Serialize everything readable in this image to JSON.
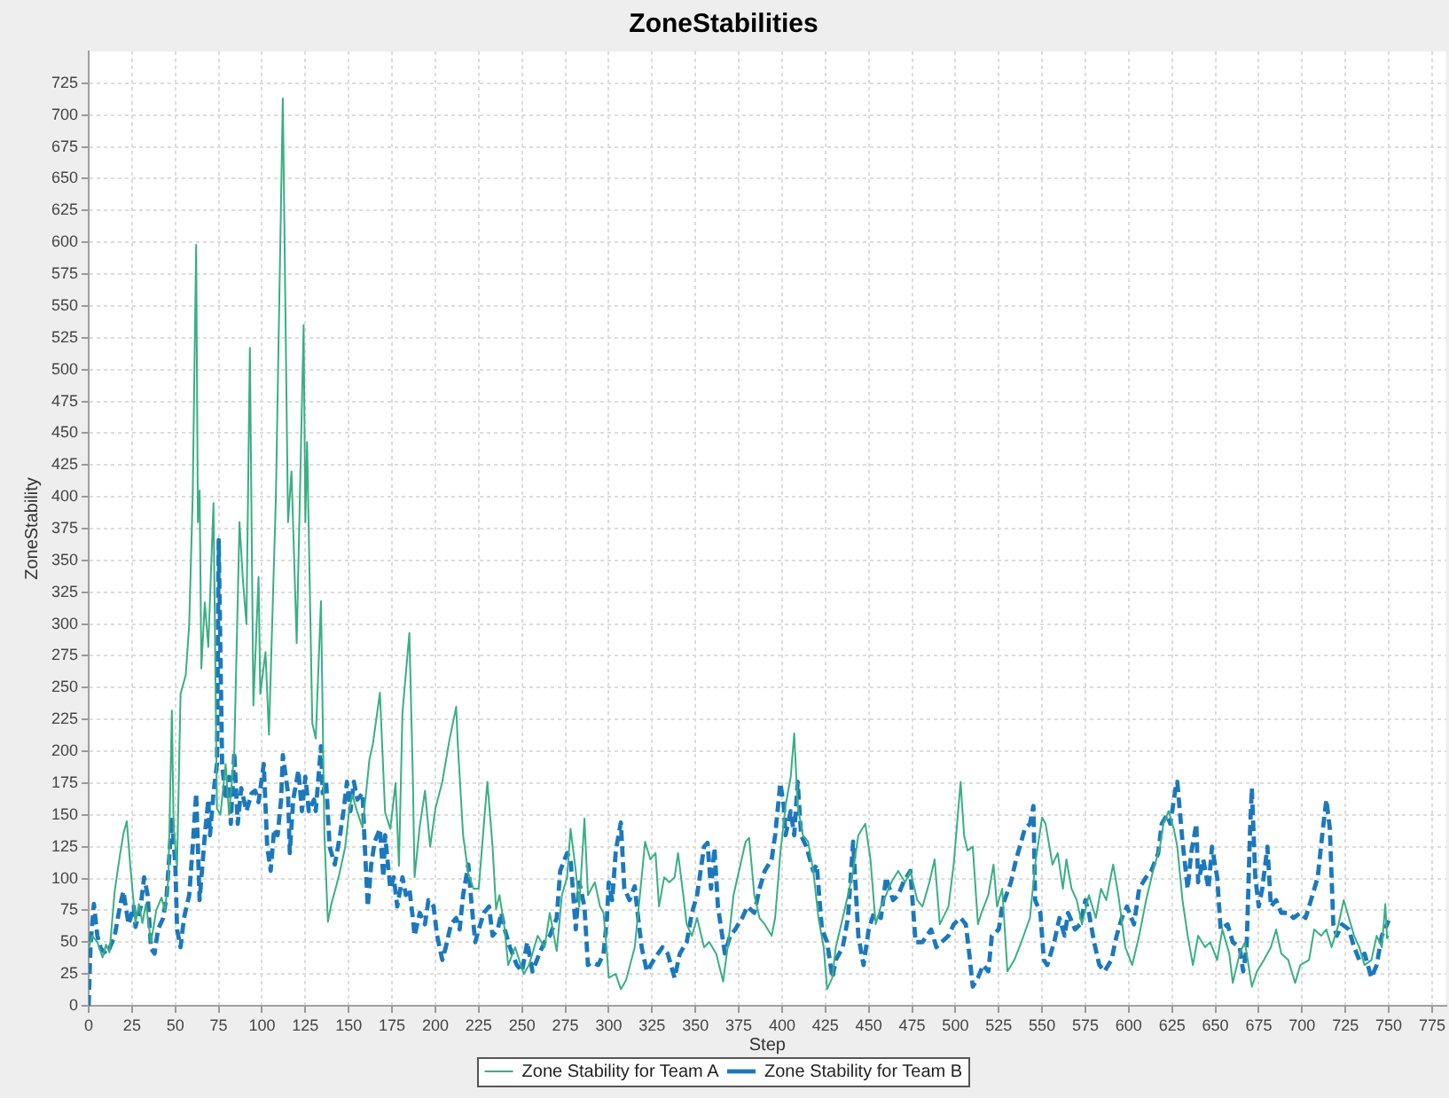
{
  "chart_data": {
    "type": "line",
    "title": "ZoneStabilities",
    "xlabel": "Step",
    "ylabel": "ZoneStability",
    "xlim": [
      0,
      783
    ],
    "ylim": [
      0,
      750
    ],
    "xticks": [
      0,
      25,
      50,
      75,
      100,
      125,
      150,
      175,
      200,
      225,
      250,
      275,
      300,
      325,
      350,
      375,
      400,
      425,
      450,
      475,
      500,
      525,
      550,
      575,
      600,
      625,
      650,
      675,
      700,
      725,
      750,
      775
    ],
    "yticks": [
      0,
      25,
      50,
      75,
      100,
      125,
      150,
      175,
      200,
      225,
      250,
      275,
      300,
      325,
      350,
      375,
      400,
      425,
      450,
      475,
      500,
      525,
      550,
      575,
      600,
      625,
      650,
      675,
      700,
      725
    ],
    "grid": true,
    "legend": "bottom",
    "marker": "none",
    "series": [
      {
        "name": "Zone Stability for Team A",
        "color": "#3aae84",
        "line_style": "solid",
        "x": [
          0,
          2,
          5,
          8,
          10,
          12,
          15,
          18,
          20,
          22,
          24,
          27,
          29,
          31,
          33,
          36,
          39,
          42,
          44,
          46,
          48,
          49,
          51,
          53,
          56,
          58,
          60,
          62,
          63,
          64,
          65,
          67,
          69,
          72,
          74,
          76,
          79,
          81,
          84,
          87,
          89,
          91,
          93,
          95,
          98,
          99,
          102,
          104,
          108,
          112,
          115,
          117,
          120,
          124,
          125,
          126,
          129,
          131,
          134,
          136,
          138,
          140,
          143,
          145,
          148,
          150,
          152,
          155,
          158,
          162,
          164,
          168,
          171,
          174,
          177,
          179,
          181,
          185,
          187,
          188,
          191,
          194,
          197,
          200,
          204,
          208,
          212,
          213,
          216,
          219,
          222,
          225,
          228,
          230,
          233,
          235,
          237,
          240,
          242,
          246,
          251,
          254,
          259,
          263,
          266,
          270,
          273,
          276,
          278,
          281,
          283,
          286,
          288,
          292,
          295,
          297,
          299,
          300,
          304,
          307,
          310,
          315,
          318,
          321,
          324,
          327,
          329,
          332,
          335,
          338,
          340,
          343,
          345,
          348,
          351,
          355,
          358,
          362,
          366,
          369,
          372,
          376,
          379,
          381,
          384,
          387,
          390,
          394,
          396,
          399,
          402,
          405,
          407,
          409,
          412,
          415,
          418,
          421,
          424,
          426,
          429,
          431,
          435,
          438,
          441,
          444,
          448,
          451,
          454,
          457,
          460,
          463,
          467,
          471,
          474,
          478,
          481,
          485,
          488,
          491,
          496,
          499,
          503,
          505,
          507,
          510,
          513,
          515,
          519,
          522,
          524,
          527,
          530,
          534,
          538,
          543,
          546,
          550,
          552,
          556,
          559,
          562,
          564,
          567,
          570,
          573,
          577,
          581,
          584,
          587,
          591,
          594,
          598,
          602,
          606,
          610,
          614,
          618,
          620,
          623,
          626,
          628,
          631,
          634,
          637,
          640,
          644,
          647,
          651,
          654,
          658,
          660,
          664,
          667,
          671,
          674,
          678,
          682,
          685,
          688,
          692,
          696,
          699,
          704,
          707,
          711,
          714,
          717,
          721,
          724,
          727,
          730,
          733,
          736,
          740,
          743,
          746,
          748,
          749,
          750
        ],
        "values": [
          45,
          55,
          50,
          38,
          48,
          42,
          90,
          118,
          135,
          145,
          110,
          65,
          80,
          65,
          80,
          50,
          75,
          85,
          75,
          100,
          232,
          140,
          110,
          245,
          260,
          300,
          400,
          598,
          380,
          405,
          265,
          317,
          282,
          395,
          155,
          150,
          190,
          150,
          200,
          380,
          334,
          300,
          517,
          236,
          337,
          245,
          278,
          213,
          400,
          713,
          380,
          420,
          285,
          535,
          380,
          443,
          222,
          210,
          318,
          134,
          66,
          80,
          95,
          106,
          125,
          150,
          166,
          152,
          140,
          194,
          206,
          246,
          152,
          139,
          175,
          110,
          230,
          293,
          180,
          101,
          141,
          169,
          125,
          155,
          176,
          208,
          235,
          204,
          134,
          104,
          92,
          92,
          143,
          176,
          125,
          76,
          87,
          60,
          32,
          46,
          25,
          32,
          55,
          46,
          73,
          43,
          87,
          101,
          139,
          106,
          78,
          147,
          87,
          97,
          78,
          73,
          41,
          22,
          25,
          13,
          20,
          46,
          87,
          129,
          115,
          120,
          78,
          101,
          97,
          101,
          120,
          87,
          64,
          55,
          69,
          46,
          50,
          41,
          19,
          50,
          87,
          111,
          129,
          132,
          87,
          69,
          64,
          55,
          69,
          120,
          157,
          180,
          214,
          157,
          134,
          129,
          106,
          69,
          46,
          13,
          22,
          46,
          69,
          87,
          106,
          134,
          143,
          115,
          64,
          78,
          87,
          97,
          106,
          97,
          106,
          83,
          78,
          97,
          115,
          64,
          78,
          111,
          176,
          134,
          122,
          125,
          64,
          73,
          87,
          111,
          78,
          92,
          27,
          36,
          50,
          69,
          111,
          148,
          143,
          111,
          120,
          92,
          115,
          92,
          83,
          64,
          87,
          69,
          92,
          83,
          111,
          87,
          46,
          32,
          55,
          83,
          106,
          125,
          143,
          153,
          139,
          125,
          83,
          55,
          32,
          55,
          46,
          50,
          36,
          60,
          41,
          18,
          41,
          50,
          15,
          27,
          36,
          46,
          60,
          41,
          36,
          18,
          32,
          36,
          60,
          55,
          60,
          46,
          64,
          83,
          69,
          55,
          46,
          32,
          36,
          55,
          46,
          80,
          53,
          55
        ]
      },
      {
        "name": "Zone Stability for Team B",
        "color": "#1c78bd",
        "line_style": "dashed",
        "x": [
          0,
          1,
          2,
          3,
          5,
          7,
          10,
          12,
          15,
          18,
          20,
          23,
          26,
          27,
          30,
          32,
          34,
          36,
          38,
          40,
          43,
          45,
          48,
          50,
          51,
          53,
          55,
          58,
          60,
          62,
          64,
          67,
          69,
          70,
          72,
          74,
          75,
          77,
          79,
          81,
          82,
          84,
          86,
          88,
          91,
          94,
          96,
          98,
          101,
          103,
          105,
          107,
          109,
          111,
          112,
          115,
          116,
          118,
          121,
          123,
          125,
          127,
          130,
          131,
          134,
          135,
          137,
          139,
          142,
          145,
          147,
          149,
          151,
          153,
          155,
          158,
          159,
          161,
          163,
          165,
          168,
          170,
          171,
          174,
          176,
          178,
          181,
          183,
          185,
          187,
          188,
          191,
          194,
          196,
          199,
          201,
          204,
          206,
          209,
          212,
          214,
          216,
          219,
          221,
          223,
          225,
          228,
          231,
          233,
          236,
          238,
          240,
          243,
          247,
          250,
          253,
          256,
          260,
          263,
          266,
          270,
          272,
          276,
          278,
          281,
          283,
          286,
          288,
          290,
          294,
          297,
          299,
          300,
          302,
          304,
          305,
          307,
          309,
          312,
          315,
          317,
          319,
          322,
          326,
          331,
          334,
          338,
          341,
          345,
          348,
          351,
          355,
          357,
          359,
          361,
          363,
          367,
          370,
          373,
          377,
          380,
          384,
          387,
          390,
          394,
          396,
          399,
          401,
          402,
          405,
          407,
          409,
          411,
          414,
          418,
          420,
          423,
          426,
          429,
          431,
          435,
          438,
          441,
          444,
          447,
          450,
          453,
          457,
          460,
          464,
          467,
          470,
          474,
          477,
          481,
          486,
          489,
          492,
          496,
          499,
          503,
          506,
          508,
          510,
          513,
          516,
          519,
          521,
          525,
          527,
          532,
          535,
          538,
          540,
          543,
          545,
          546,
          549,
          551,
          553,
          557,
          560,
          563,
          565,
          569,
          572,
          575,
          577,
          580,
          583,
          586,
          590,
          593,
          596,
          599,
          603,
          606,
          610,
          613,
          617,
          619,
          622,
          624,
          627,
          628,
          631,
          634,
          636,
          639,
          640,
          643,
          646,
          648,
          651,
          653,
          657,
          660,
          664,
          666,
          668,
          670,
          671,
          673,
          675,
          677,
          680,
          682,
          685,
          688,
          692,
          695,
          699,
          702,
          706,
          709,
          712,
          714,
          716,
          718,
          720,
          723,
          727,
          730,
          733,
          736,
          740,
          743,
          746,
          750
        ],
        "values": [
          0,
          45,
          64,
          80,
          55,
          45,
          41,
          45,
          55,
          78,
          90,
          64,
          78,
          62,
          78,
          101,
          87,
          45,
          41,
          60,
          69,
          87,
          148,
          111,
          60,
          46,
          69,
          87,
          125,
          167,
          83,
          134,
          162,
          134,
          167,
          190,
          366,
          190,
          162,
          180,
          143,
          199,
          143,
          171,
          153,
          167,
          169,
          160,
          190,
          125,
          106,
          139,
          134,
          162,
          197,
          167,
          120,
          162,
          185,
          153,
          180,
          153,
          162,
          153,
          204,
          167,
          176,
          125,
          111,
          134,
          153,
          176,
          153,
          176,
          162,
          167,
          134,
          78,
          111,
          129,
          139,
          101,
          134,
          92,
          101,
          78,
          101,
          87,
          92,
          69,
          55,
          73,
          64,
          83,
          78,
          55,
          36,
          46,
          64,
          69,
          60,
          87,
          111,
          78,
          50,
          60,
          73,
          78,
          55,
          60,
          73,
          60,
          46,
          32,
          27,
          50,
          27,
          41,
          50,
          55,
          69,
          106,
          120,
          115,
          60,
          97,
          78,
          32,
          34,
          32,
          41,
          69,
          97,
          83,
          120,
          129,
          144,
          92,
          83,
          94,
          69,
          46,
          27,
          36,
          46,
          41,
          22,
          41,
          50,
          73,
          87,
          125,
          128,
          92,
          124,
          78,
          41,
          55,
          60,
          69,
          78,
          73,
          92,
          106,
          115,
          134,
          175,
          157,
          134,
          153,
          134,
          176,
          134,
          125,
          106,
          111,
          60,
          50,
          22,
          36,
          46,
          69,
          129,
          55,
          32,
          60,
          73,
          69,
          101,
          83,
          87,
          97,
          106,
          50,
          50,
          60,
          46,
          50,
          55,
          64,
          69,
          64,
          41,
          15,
          22,
          32,
          27,
          55,
          60,
          78,
          97,
          115,
          129,
          139,
          143,
          157,
          83,
          73,
          36,
          32,
          50,
          69,
          55,
          73,
          60,
          64,
          83,
          73,
          50,
          32,
          27,
          36,
          55,
          69,
          78,
          64,
          92,
          101,
          106,
          120,
          143,
          150,
          143,
          171,
          176,
          129,
          92,
          120,
          143,
          97,
          115,
          92,
          125,
          101,
          60,
          64,
          50,
          46,
          27,
          46,
          139,
          171,
          101,
          78,
          92,
          125,
          78,
          83,
          73,
          73,
          69,
          73,
          69,
          87,
          101,
          139,
          162,
          139,
          64,
          55,
          64,
          60,
          46,
          36,
          41,
          22,
          32,
          55,
          67
        ]
      }
    ]
  }
}
